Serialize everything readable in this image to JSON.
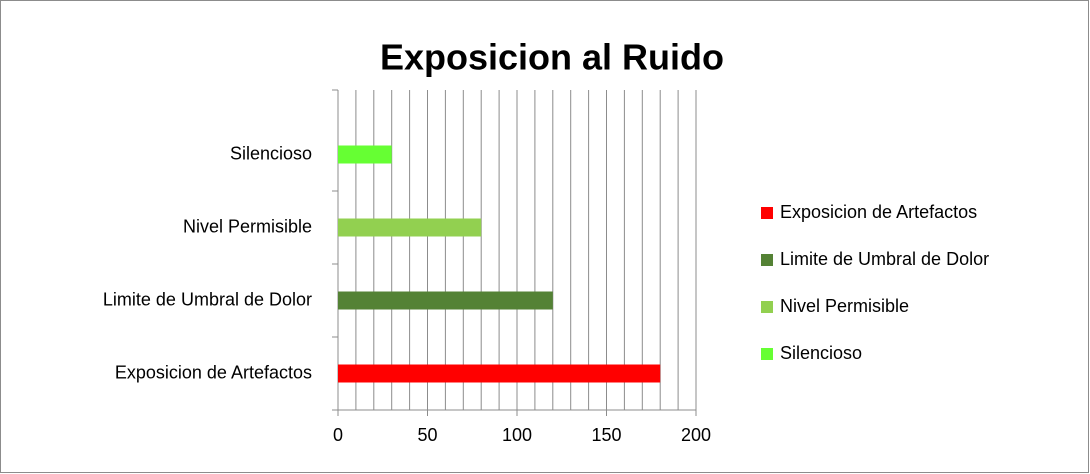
{
  "chart_data": {
    "type": "barh",
    "title": "Exposicion al Ruido",
    "categories": [
      "Exposicion de Artefactos",
      "Limite de Umbral de Dolor",
      "Nivel Permisible",
      "Silencioso"
    ],
    "values": [
      180,
      120,
      80,
      30
    ],
    "colors": [
      "#ff0000",
      "#548235",
      "#92d050",
      "#66ff33"
    ],
    "xlim": [
      0,
      200
    ],
    "xticks": [
      0,
      50,
      100,
      150,
      200
    ],
    "grid": true,
    "minor_grid_step": 10,
    "legend": "right"
  }
}
